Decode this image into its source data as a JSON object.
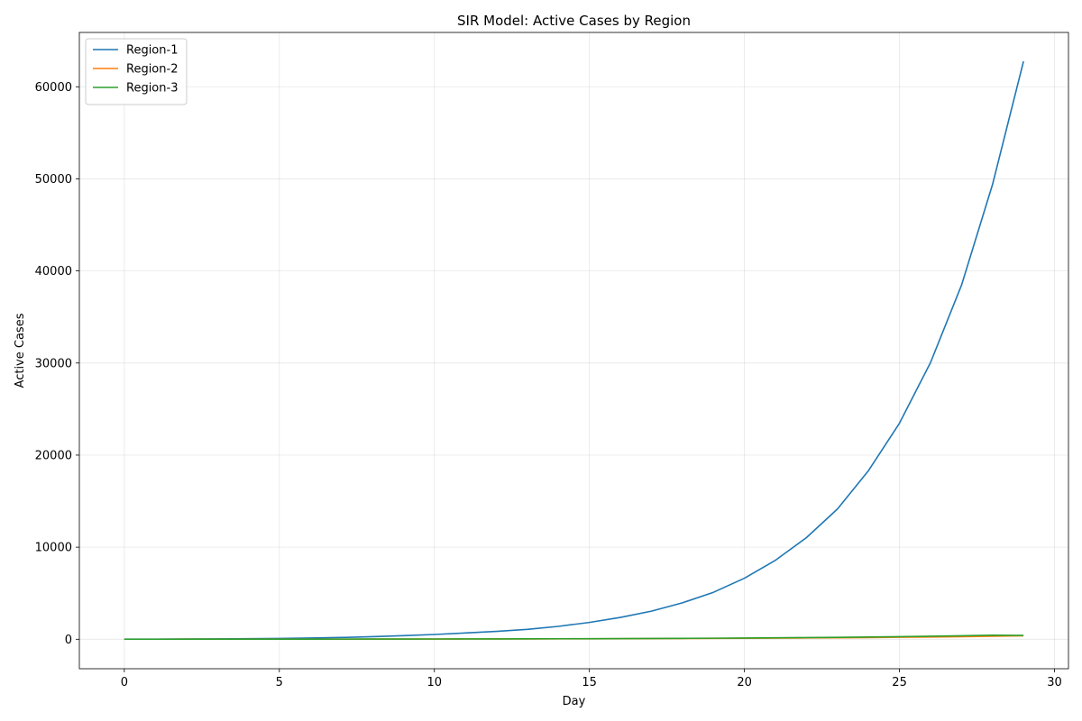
{
  "chart_data": {
    "type": "line",
    "title": "SIR Model: Active Cases by Region",
    "xlabel": "Day",
    "ylabel": "Active Cases",
    "xlim": [
      -1.45,
      30.45
    ],
    "ylim": [
      -3200,
      65900
    ],
    "xticks": [
      0,
      5,
      10,
      15,
      20,
      25,
      30
    ],
    "yticks": [
      0,
      10000,
      20000,
      30000,
      40000,
      50000,
      60000
    ],
    "grid": true,
    "legend_position": "upper-left",
    "x": [
      0,
      1,
      2,
      3,
      4,
      5,
      6,
      7,
      8,
      9,
      10,
      11,
      12,
      13,
      14,
      15,
      16,
      17,
      18,
      19,
      20,
      21,
      22,
      23,
      24,
      25,
      26,
      27,
      28,
      29
    ],
    "series": [
      {
        "name": "Region-1",
        "color": "#1f77b4",
        "values": [
          10,
          15,
          25,
          40,
          60,
          85,
          130,
          190,
          280,
          390,
          520,
          680,
          860,
          1080,
          1400,
          1830,
          2370,
          3050,
          3960,
          5100,
          6630,
          8580,
          11040,
          14150,
          18310,
          23470,
          30040,
          38450,
          49380,
          62760
        ]
      },
      {
        "name": "Region-2",
        "color": "#ff7f0e",
        "values": [
          5,
          6,
          7,
          9,
          10,
          12,
          14,
          16,
          19,
          22,
          25,
          29,
          34,
          39,
          45,
          52,
          60,
          69,
          80,
          92,
          106,
          122,
          140,
          161,
          185,
          213,
          245,
          282,
          324,
          372
        ]
      },
      {
        "name": "Region-3",
        "color": "#2ca02c",
        "values": [
          5,
          6,
          7,
          9,
          11,
          13,
          15,
          18,
          21,
          25,
          29,
          34,
          40,
          46,
          54,
          63,
          74,
          86,
          100,
          116,
          135,
          157,
          182,
          211,
          245,
          284,
          330,
          383,
          444,
          415
        ]
      }
    ]
  }
}
